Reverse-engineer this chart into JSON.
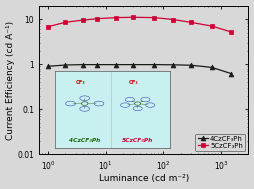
{
  "title": "",
  "xlabel": "Luminance (cd m⁻²)",
  "ylabel": "Current Efficiency (cd A⁻¹)",
  "xlim": [
    0.7,
    3000
  ],
  "ylim": [
    0.01,
    20
  ],
  "series_4Cz": {
    "x": [
      1.0,
      2.0,
      4.0,
      7.0,
      15.0,
      30.0,
      70.0,
      150.0,
      300.0,
      700.0,
      1500.0
    ],
    "y": [
      0.9,
      0.96,
      0.98,
      0.98,
      0.98,
      0.98,
      0.98,
      0.97,
      0.95,
      0.85,
      0.62
    ],
    "color": "#1a1a1a",
    "marker": "^",
    "label": "4CzCF₃Ph"
  },
  "series_5Cz": {
    "x": [
      1.0,
      2.0,
      4.0,
      7.0,
      15.0,
      30.0,
      70.0,
      150.0,
      300.0,
      700.0,
      1500.0
    ],
    "y": [
      6.8,
      8.5,
      9.5,
      10.2,
      10.8,
      11.0,
      10.8,
      9.8,
      8.5,
      7.0,
      5.2
    ],
    "color": "#cc0033",
    "marker": "s",
    "label": "5CzCF₃Ph"
  },
  "inset_bg": "#c8f0f0",
  "inset_label_4Cz": "4CzCF₃Ph",
  "inset_label_5Cz": "5CzCF₃Ph",
  "inset_label_4Cz_color": "#1a6600",
  "inset_label_5Cz_color": "#cc0033",
  "background_color": "#d8d8d8",
  "plot_bg": "#d8d8d8",
  "axis_label_fontsize": 6.5,
  "tick_fontsize": 5.5,
  "legend_fontsize": 5.0,
  "markersize": 3.5,
  "linewidth": 0.9
}
